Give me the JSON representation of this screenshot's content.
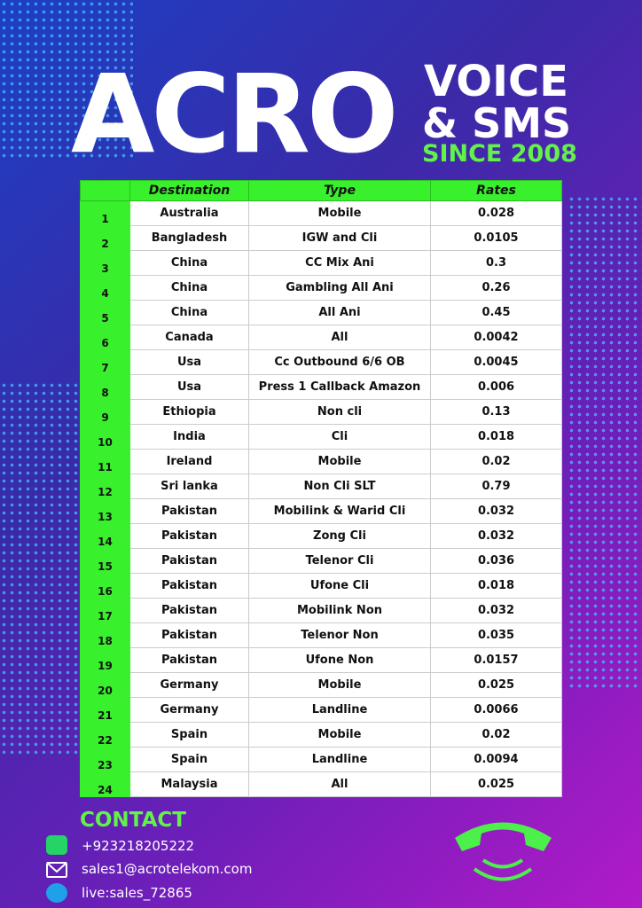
{
  "header": {
    "brand": "ACRO",
    "line1": "VOICE",
    "line2": "& SMS",
    "since": "SINCE 2008"
  },
  "table": {
    "columns": [
      "Destination",
      "Type",
      "Rates"
    ],
    "rows": [
      [
        "1",
        "Australia",
        "Mobile",
        "0.028"
      ],
      [
        "2",
        "Bangladesh",
        "IGW and Cli",
        "0.0105"
      ],
      [
        "3",
        "China",
        "CC Mix Ani",
        "0.3"
      ],
      [
        "4",
        "China",
        "Gambling All Ani",
        "0.26"
      ],
      [
        "5",
        "China",
        "All Ani",
        "0.45"
      ],
      [
        "6",
        "Canada",
        "All",
        "0.0042"
      ],
      [
        "7",
        "Usa",
        "Cc Outbound 6/6 OB",
        "0.0045"
      ],
      [
        "8",
        "Usa",
        "Press 1 Callback Amazon",
        "0.006"
      ],
      [
        "9",
        "Ethiopia",
        "Non cli",
        "0.13"
      ],
      [
        "10",
        "India",
        "Cli",
        "0.018"
      ],
      [
        "11",
        "Ireland",
        "Mobile",
        "0.02"
      ],
      [
        "12",
        "Sri lanka",
        "Non Cli SLT",
        "0.79"
      ],
      [
        "13",
        "Pakistan",
        "Mobilink & Warid Cli",
        "0.032"
      ],
      [
        "14",
        "Pakistan",
        "Zong Cli",
        "0.032"
      ],
      [
        "15",
        "Pakistan",
        "Telenor Cli",
        "0.036"
      ],
      [
        "16",
        "Pakistan",
        "Ufone Cli",
        "0.018"
      ],
      [
        "17",
        "Pakistan",
        "Mobilink Non",
        "0.032"
      ],
      [
        "18",
        "Pakistan",
        "Telenor Non",
        "0.035"
      ],
      [
        "19",
        "Pakistan",
        "Ufone Non",
        "0.0157"
      ],
      [
        "20",
        "Germany",
        "Mobile",
        "0.025"
      ],
      [
        "21",
        "Germany",
        "Landline",
        "0.0066"
      ],
      [
        "22",
        "Spain",
        "Mobile",
        "0.02"
      ],
      [
        "23",
        "Spain",
        "Landline",
        "0.0094"
      ],
      [
        "24",
        "Malaysia",
        "All",
        "0.025"
      ]
    ]
  },
  "contact": {
    "title": "CONTACT",
    "phone": "+923218205222",
    "email": "sales1@acrotelekom.com",
    "skype": "live:sales_72865"
  }
}
